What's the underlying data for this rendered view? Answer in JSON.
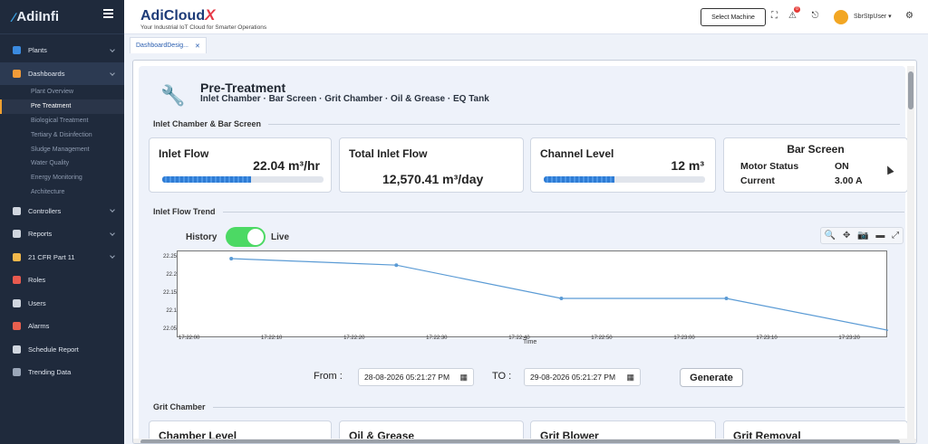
{
  "sidebar": {
    "logo": "AdiInfi",
    "items": [
      {
        "label": "Plants",
        "icon": "building-icon",
        "color": "#3b8be0",
        "chev": true
      },
      {
        "label": "Dashboards",
        "icon": "monitor-icon",
        "color": "#f29b38",
        "chev": true,
        "active": true
      },
      {
        "label": "Controllers",
        "icon": "controller-icon",
        "color": "#d0d6df",
        "chev": true
      },
      {
        "label": "Reports",
        "icon": "report-icon",
        "color": "#d0d6df",
        "chev": true
      },
      {
        "label": "21 CFR Part 11",
        "icon": "certificate-icon",
        "color": "#f2b84b",
        "chev": true
      },
      {
        "label": "Roles",
        "icon": "roles-icon",
        "color": "#e85a4f",
        "chev": false
      },
      {
        "label": "Users",
        "icon": "users-icon",
        "color": "#d0d6df",
        "chev": false
      },
      {
        "label": "Alarms",
        "icon": "alarm-icon",
        "color": "#e8604f",
        "chev": false
      },
      {
        "label": "Schedule Report",
        "icon": "schedule-icon",
        "color": "#d0d6df",
        "chev": false
      },
      {
        "label": "Trending Data",
        "icon": "trend-icon",
        "color": "#9aa6b8",
        "chev": false
      }
    ],
    "sub_items": [
      "Plant Overview",
      "Pre Treatment",
      "Biological Treatment",
      "Tertiary & Disinfection",
      "Sludge Management",
      "Water Quality",
      "Energy Monitoring",
      "Architecture"
    ],
    "selected_sub": 1
  },
  "topbar": {
    "brand": "AdiCloud",
    "brand_x": "X",
    "tagline": "Your Industrial IoT Cloud for Smarter Operations",
    "select_machine": "Select Machine",
    "alert_count": "0",
    "user": "SbrStpUser"
  },
  "tabs": [
    {
      "label": "DashboardDesig..."
    }
  ],
  "page": {
    "title": "Pre-Treatment",
    "subtitle": "Inlet Chamber · Bar Screen · Grit Chamber · Oil & Grease · EQ Tank",
    "section1": "Inlet Chamber & Bar Screen",
    "section2": "Inlet Flow Trend",
    "section3": "Grit Chamber"
  },
  "cards": {
    "inlet_flow": {
      "label": "Inlet Flow",
      "value": "22.04 m³/hr",
      "level": 0.55
    },
    "total_inlet_flow": {
      "label": "Total Inlet Flow",
      "value": "12,570.41 m³/day"
    },
    "channel_level": {
      "label": "Channel Level",
      "value": "12 m³",
      "level": 0.44
    },
    "bar_screen": {
      "title": "Bar Screen",
      "motor_status_label": "Motor Status",
      "motor_status": "ON",
      "current_label": "Current",
      "current": "3.00 A"
    }
  },
  "trend": {
    "history_label": "History",
    "live_label": "Live",
    "mode": "Live",
    "from_label": "From :",
    "to_label": "TO :",
    "from": "28-08-2026 05:21:27 PM",
    "to": "29-08-2026 05:21:27 PM",
    "generate": "Generate"
  },
  "chart_data": {
    "type": "line",
    "x": [
      "17:22:05",
      "17:22:25",
      "17:22:45",
      "17:23:05",
      "17:23:25"
    ],
    "values": [
      22.25,
      22.232,
      22.14,
      22.14,
      22.05
    ],
    "xticks": [
      "17:22:00",
      "17:22:10",
      "17:22:20",
      "17:22:30",
      "17:22:40",
      "17:22:50",
      "17:23:00",
      "17:23:10",
      "17:23:20"
    ],
    "yticks": [
      "22.25",
      "22.2",
      "22.15",
      "22.1",
      "22.05"
    ],
    "ylim": [
      22.03,
      22.27
    ],
    "xlabel": "Time",
    "ylabel": "",
    "color": "#5b9bd5",
    "grid": false
  },
  "grit_cards": [
    "Chamber Level",
    "Oil & Grease",
    "Grit Blower",
    "Grit Removal"
  ]
}
